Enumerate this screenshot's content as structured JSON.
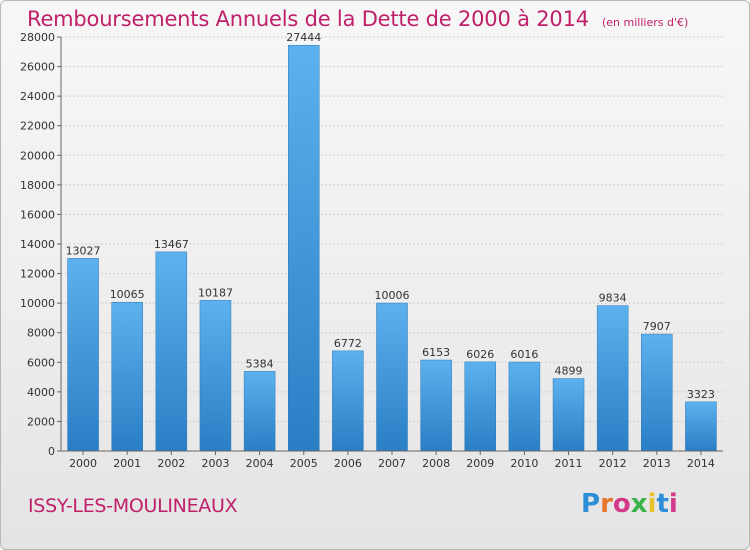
{
  "header": {
    "title": "Remboursements Annuels de la Dette de 2000 à 2014",
    "subtitle": "(en milliers d'€)"
  },
  "footer": {
    "location": "ISSY-LES-MOULINEAUX",
    "logo": "Proxiti",
    "logo_colors": [
      "#2b8ed6",
      "#e8762c",
      "#d43a8a",
      "#3cb34a",
      "#e8c12c",
      "#2b8ed6",
      "#d43a8a"
    ]
  },
  "chart_data": {
    "type": "bar",
    "categories": [
      "2000",
      "2001",
      "2002",
      "2003",
      "2004",
      "2005",
      "2006",
      "2007",
      "2008",
      "2009",
      "2010",
      "2011",
      "2012",
      "2013",
      "2014"
    ],
    "values": [
      13027,
      10065,
      13467,
      10187,
      5384,
      27444,
      6772,
      10006,
      6153,
      6026,
      6016,
      4899,
      9834,
      7907,
      3323
    ],
    "data_labels": [
      "13027",
      "10065",
      "13467",
      "10187",
      "5384",
      "27444",
      "6772",
      "10006",
      "6153",
      "6026",
      "6016",
      "4899",
      "9834",
      "7907",
      "3323"
    ],
    "yticks": [
      "0",
      "2000",
      "4000",
      "6000",
      "8000",
      "10000",
      "12000",
      "14000",
      "16000",
      "18000",
      "20000",
      "22000",
      "24000",
      "26000",
      "28000"
    ],
    "ylim": [
      0,
      28000
    ],
    "grid": true,
    "bar_color": "#3f9ae0"
  }
}
